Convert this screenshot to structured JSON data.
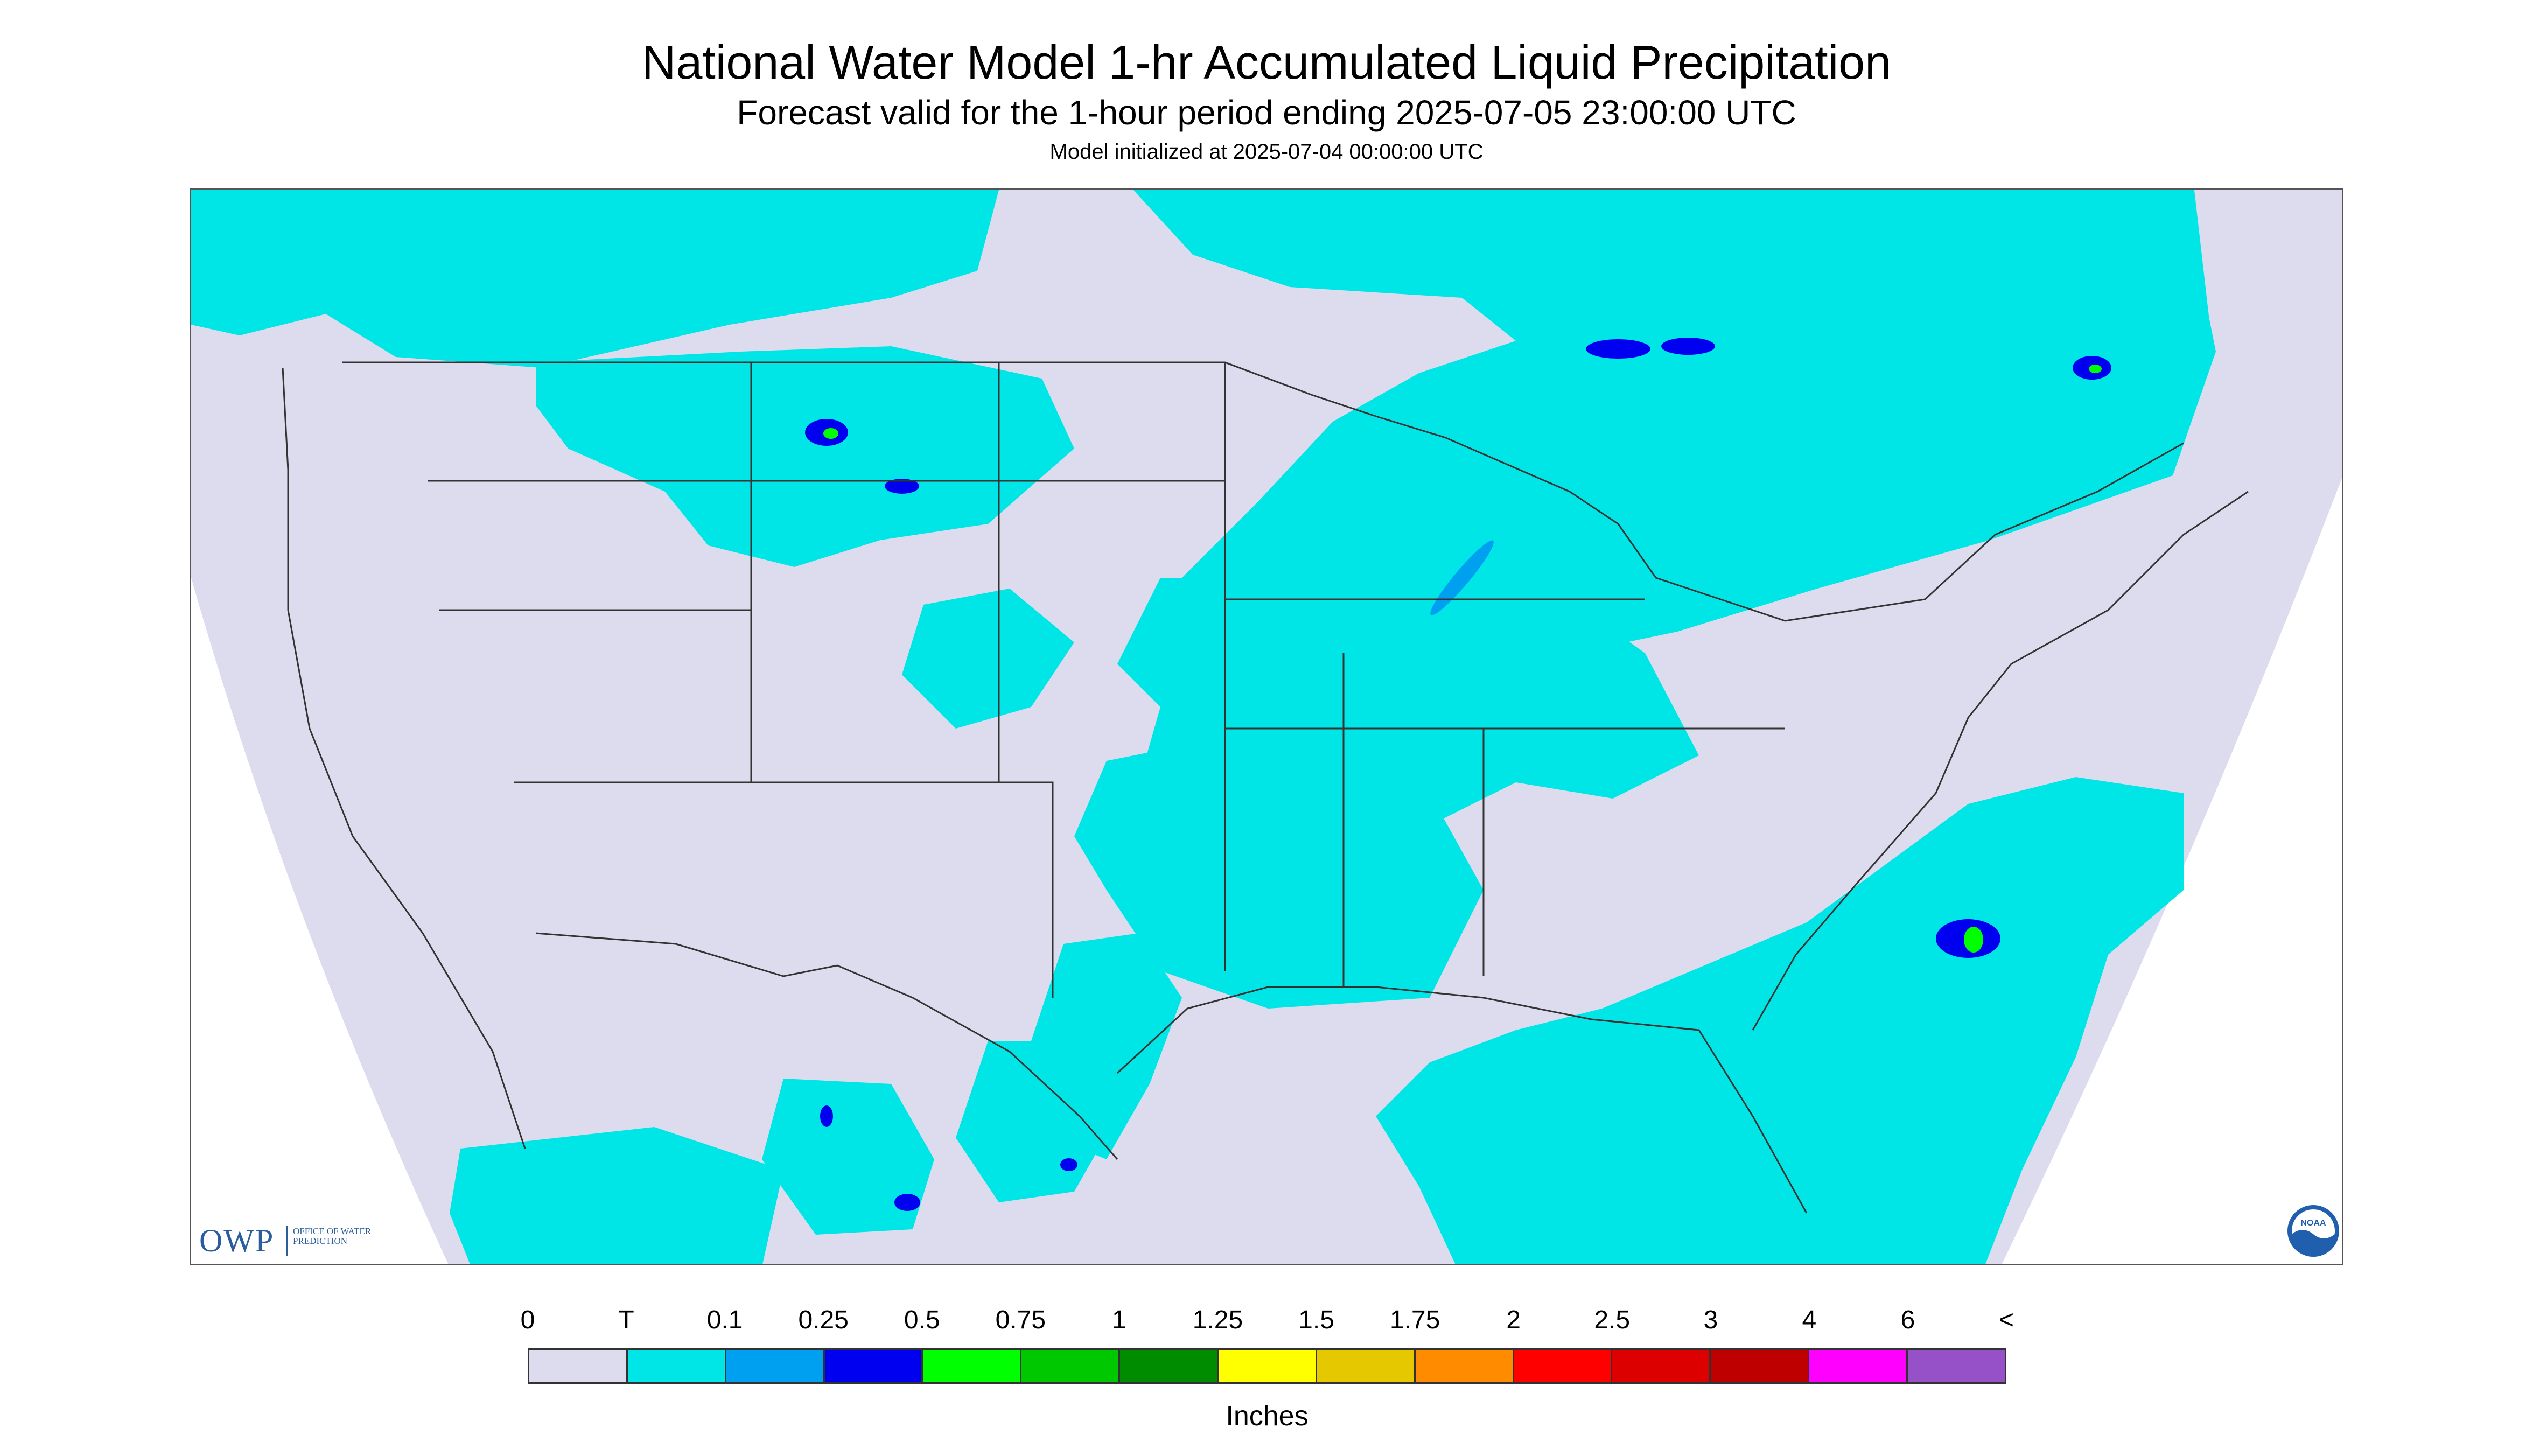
{
  "title": "National Water Model 1-hr Accumulated Liquid Precipitation",
  "subtitle": "Forecast valid for the 1-hour period ending 2025-07-05 23:00:00 UTC",
  "init_text": "Model initialized at 2025-07-04 00:00:00 UTC",
  "logos": {
    "owp_mark": "OWP",
    "owp_text": "OFFICE OF WATER PREDICTION",
    "noaa_text": "NOAA"
  },
  "colors": {
    "outside_domain": "#ffffff",
    "background_zero": "#dcdcee",
    "trace": "#00e6e6",
    "boundaries": "#333333"
  },
  "legend": {
    "labels": [
      "0",
      "T",
      "0.1",
      "0.25",
      "0.5",
      "0.75",
      "1",
      "1.25",
      "1.5",
      "1.75",
      "2",
      "2.5",
      "3",
      "4",
      "6",
      "<"
    ],
    "colors": [
      "#dcdcee",
      "#00e6e6",
      "#00a0f0",
      "#0000f0",
      "#00ff00",
      "#00c800",
      "#008c00",
      "#ffff00",
      "#e6c800",
      "#ff8c00",
      "#ff0000",
      "#dc0000",
      "#be0000",
      "#ff00ff",
      "#9650c8"
    ],
    "unit": "Inches"
  }
}
